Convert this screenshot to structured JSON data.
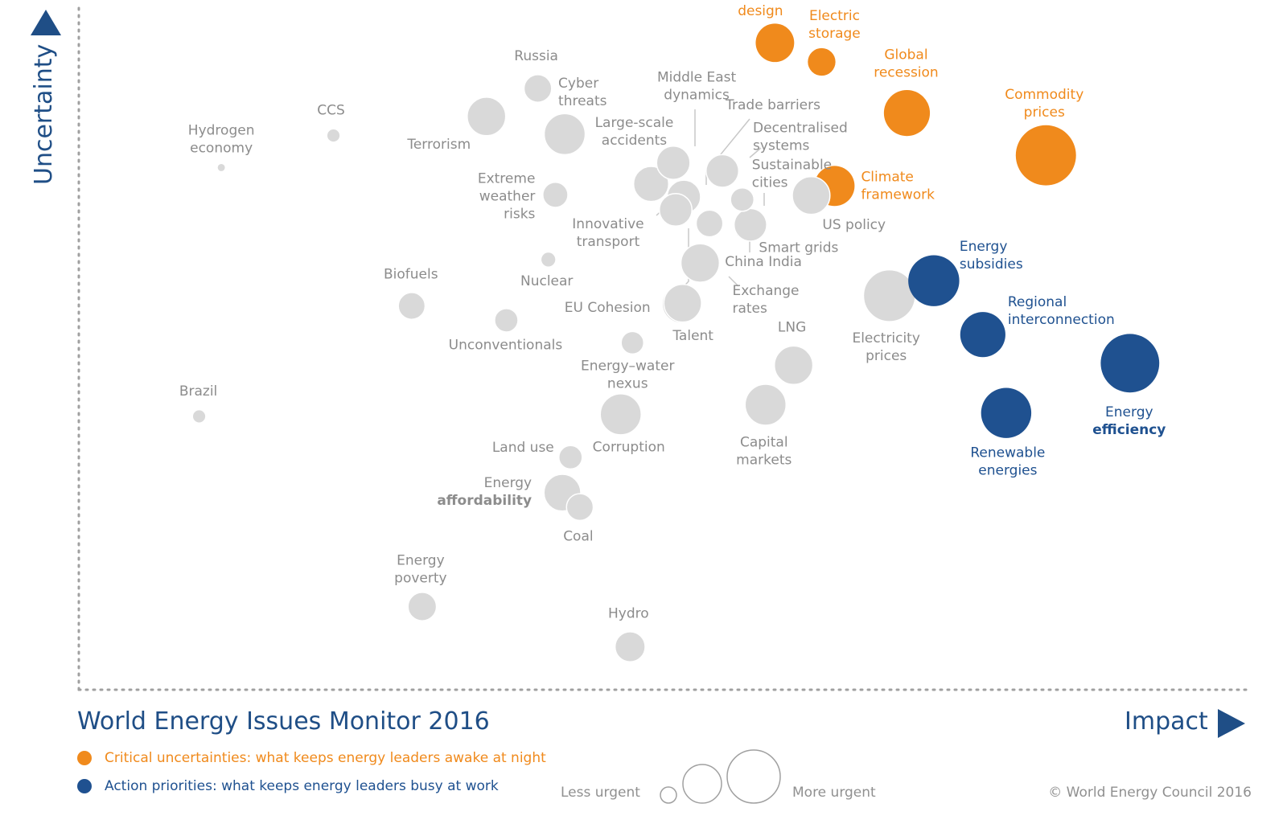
{
  "chart_data": {
    "type": "scatter",
    "title": "World Energy Issues Monitor 2016",
    "xlabel": "Impact",
    "ylabel": "Uncertainty",
    "xlim": [
      0,
      100
    ],
    "ylim": [
      0,
      100
    ],
    "grid": false,
    "legend_placement": "bottom-left",
    "colors": {
      "grey": "#d9d9d9",
      "label_grey": "#8c8c8c",
      "orange": "#f08a1c",
      "blue": "#1f5190",
      "title": "#1f4e86"
    },
    "points": [
      {
        "label": "Hydrogen economy",
        "x": 12.2,
        "y": 76.6,
        "size": 1,
        "group": "grey"
      },
      {
        "label": "CCS",
        "x": 21.8,
        "y": 81.3,
        "size": 1.6,
        "group": "grey"
      },
      {
        "label": "Brazil",
        "x": 10.3,
        "y": 40.1,
        "size": 1.6,
        "group": "grey"
      },
      {
        "label": "Russia",
        "x": 39.3,
        "y": 88.2,
        "size": 3.3,
        "group": "grey"
      },
      {
        "label": "Terrorism",
        "x": 34.9,
        "y": 84.1,
        "size": 4.6,
        "group": "grey"
      },
      {
        "label": "Cyber threats",
        "x": 41.6,
        "y": 81.5,
        "size": 4.9,
        "group": "grey"
      },
      {
        "label": "Biofuels",
        "x": 28.5,
        "y": 56.3,
        "size": 3.2,
        "group": "grey"
      },
      {
        "label": "Nuclear",
        "x": 40.2,
        "y": 63.1,
        "size": 1.8,
        "group": "grey"
      },
      {
        "label": "Unconventionals",
        "x": 36.6,
        "y": 54.2,
        "size": 2.8,
        "group": "grey"
      },
      {
        "label": "Extreme weather risks",
        "x": 40.8,
        "y": 72.6,
        "size": 3.0,
        "group": "grey"
      },
      {
        "label": "Large-scale accidents",
        "x": 49.0,
        "y": 74.2,
        "size": 4.2,
        "group": "grey"
      },
      {
        "label": "Middle East dynamics",
        "x": 50.9,
        "y": 77.3,
        "size": 4.0,
        "group": "grey"
      },
      {
        "label": "Trade barriers",
        "x": 51.8,
        "y": 72.3,
        "size": 4.0,
        "group": "grey"
      },
      {
        "label": "Innovative transport",
        "x": 51.1,
        "y": 70.4,
        "size": 3.9,
        "group": "grey"
      },
      {
        "label": "Decentralised systems",
        "x": 55.1,
        "y": 76.1,
        "size": 3.9,
        "group": "grey"
      },
      {
        "label": "Sustainable cities",
        "x": 56.8,
        "y": 71.9,
        "size": 2.8,
        "group": "grey"
      },
      {
        "label": "Smart grids",
        "x": 57.5,
        "y": 68.2,
        "size": 3.9,
        "group": "grey"
      },
      {
        "label": "China India",
        "x": 54.0,
        "y": 68.4,
        "size": 3.2,
        "group": "grey"
      },
      {
        "label": "Exchange rates",
        "x": 53.2,
        "y": 62.6,
        "size": 4.6,
        "group": "grey"
      },
      {
        "label": "EU Cohesion",
        "x": 51.6,
        "y": 56.6,
        "size": 4.6,
        "group": "grey"
      },
      {
        "label": "Talent",
        "x": 51.7,
        "y": 56.7,
        "size": 4.5,
        "group": "grey"
      },
      {
        "label": "Energy–water nexus",
        "x": 47.4,
        "y": 50.9,
        "size": 2.7,
        "group": "grey"
      },
      {
        "label": "US policy",
        "x": 62.7,
        "y": 72.5,
        "size": 4.5,
        "group": "grey"
      },
      {
        "label": "LNG",
        "x": 61.2,
        "y": 47.6,
        "size": 4.6,
        "group": "grey"
      },
      {
        "label": "Capital markets",
        "x": 58.8,
        "y": 41.8,
        "size": 4.9,
        "group": "grey"
      },
      {
        "label": "Electricity prices",
        "x": 69.4,
        "y": 57.8,
        "size": 6.2,
        "group": "grey"
      },
      {
        "label": "Corruption",
        "x": 46.4,
        "y": 40.4,
        "size": 4.9,
        "group": "grey"
      },
      {
        "label": "Land use",
        "x": 42.1,
        "y": 34.1,
        "size": 2.8,
        "group": "grey"
      },
      {
        "label": "Energy affordability",
        "x": 41.4,
        "y": 28.9,
        "size": 4.4,
        "group": "grey"
      },
      {
        "label": "Coal",
        "x": 42.9,
        "y": 26.8,
        "size": 3.2,
        "group": "grey"
      },
      {
        "label": "Energy poverty",
        "x": 29.4,
        "y": 12.2,
        "size": 3.4,
        "group": "grey"
      },
      {
        "label": "Hydro",
        "x": 47.2,
        "y": 6.3,
        "size": 3.6,
        "group": "grey"
      },
      {
        "label": "Market design",
        "x": 59.6,
        "y": 94.9,
        "size": 4.6,
        "group": "orange"
      },
      {
        "label": "Electric storage",
        "x": 63.6,
        "y": 92.1,
        "size": 3.3,
        "group": "orange"
      },
      {
        "label": "Global recession",
        "x": 70.9,
        "y": 84.6,
        "size": 5.5,
        "group": "orange"
      },
      {
        "label": "Climate framework",
        "x": 64.7,
        "y": 73.9,
        "size": 4.8,
        "group": "orange"
      },
      {
        "label": "Commodity prices",
        "x": 82.8,
        "y": 78.4,
        "size": 7.2,
        "group": "orange"
      },
      {
        "label": "Energy subsidies",
        "x": 73.2,
        "y": 60.0,
        "size": 6.1,
        "group": "blue"
      },
      {
        "label": "Regional interconnection",
        "x": 77.4,
        "y": 52.1,
        "size": 5.4,
        "group": "blue"
      },
      {
        "label": "Energy efficiency",
        "x": 90.0,
        "y": 47.9,
        "size": 7.0,
        "group": "blue"
      },
      {
        "label": "Renewable energies",
        "x": 79.4,
        "y": 40.6,
        "size": 6.0,
        "group": "blue"
      }
    ],
    "legend": [
      {
        "text": "Critical uncertainties: what keeps energy leaders awake at night",
        "group": "orange"
      },
      {
        "text": "Action priorities: what keeps energy leaders busy at work",
        "group": "blue"
      }
    ],
    "size_legend": {
      "less": "Less urgent",
      "more": "More urgent"
    }
  },
  "credit": "© World Energy Council 2016"
}
